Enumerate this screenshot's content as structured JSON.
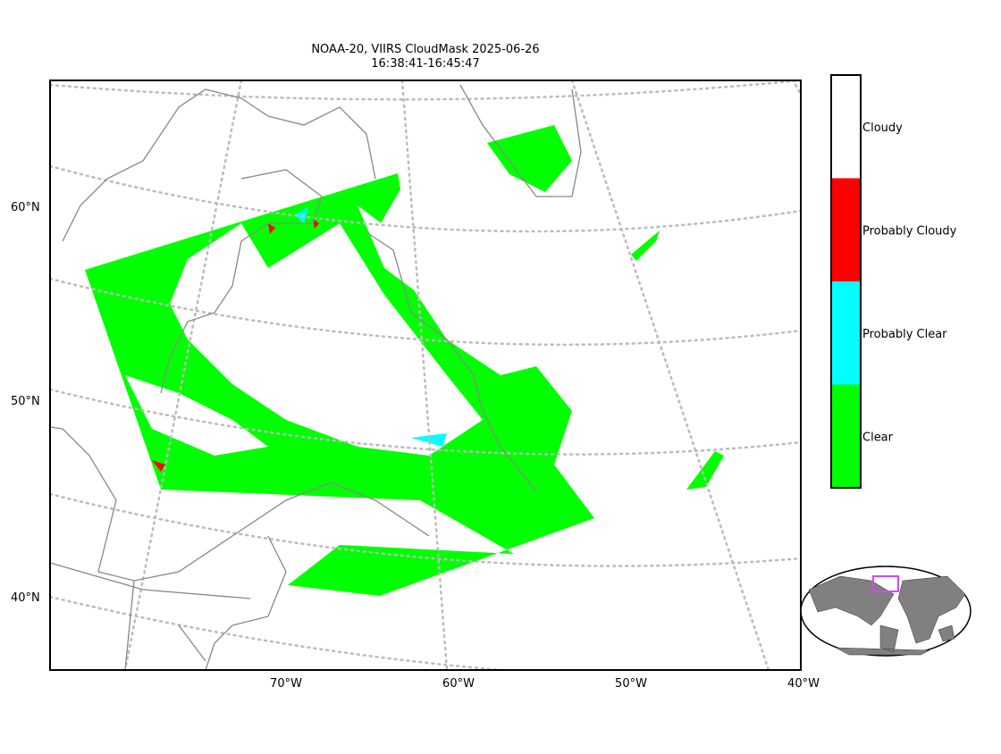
{
  "title": [
    "NOAA-20, VIIRS CloudMask 2025-06-26",
    "16:38:41-16:45:47"
  ],
  "lat_labels": [
    "60°N",
    "50°N",
    "40°N"
  ],
  "lon_labels": [
    "70°W",
    "60°W",
    "50°W",
    "40°W"
  ],
  "legend": [
    {
      "label": "Cloudy",
      "color": "#ffffff"
    },
    {
      "label": "Probably Cloudy",
      "color": "#ff0000"
    },
    {
      "label": "Probably Clear",
      "color": "#00ffff"
    },
    {
      "label": "Clear",
      "color": "#00ff00"
    }
  ]
}
